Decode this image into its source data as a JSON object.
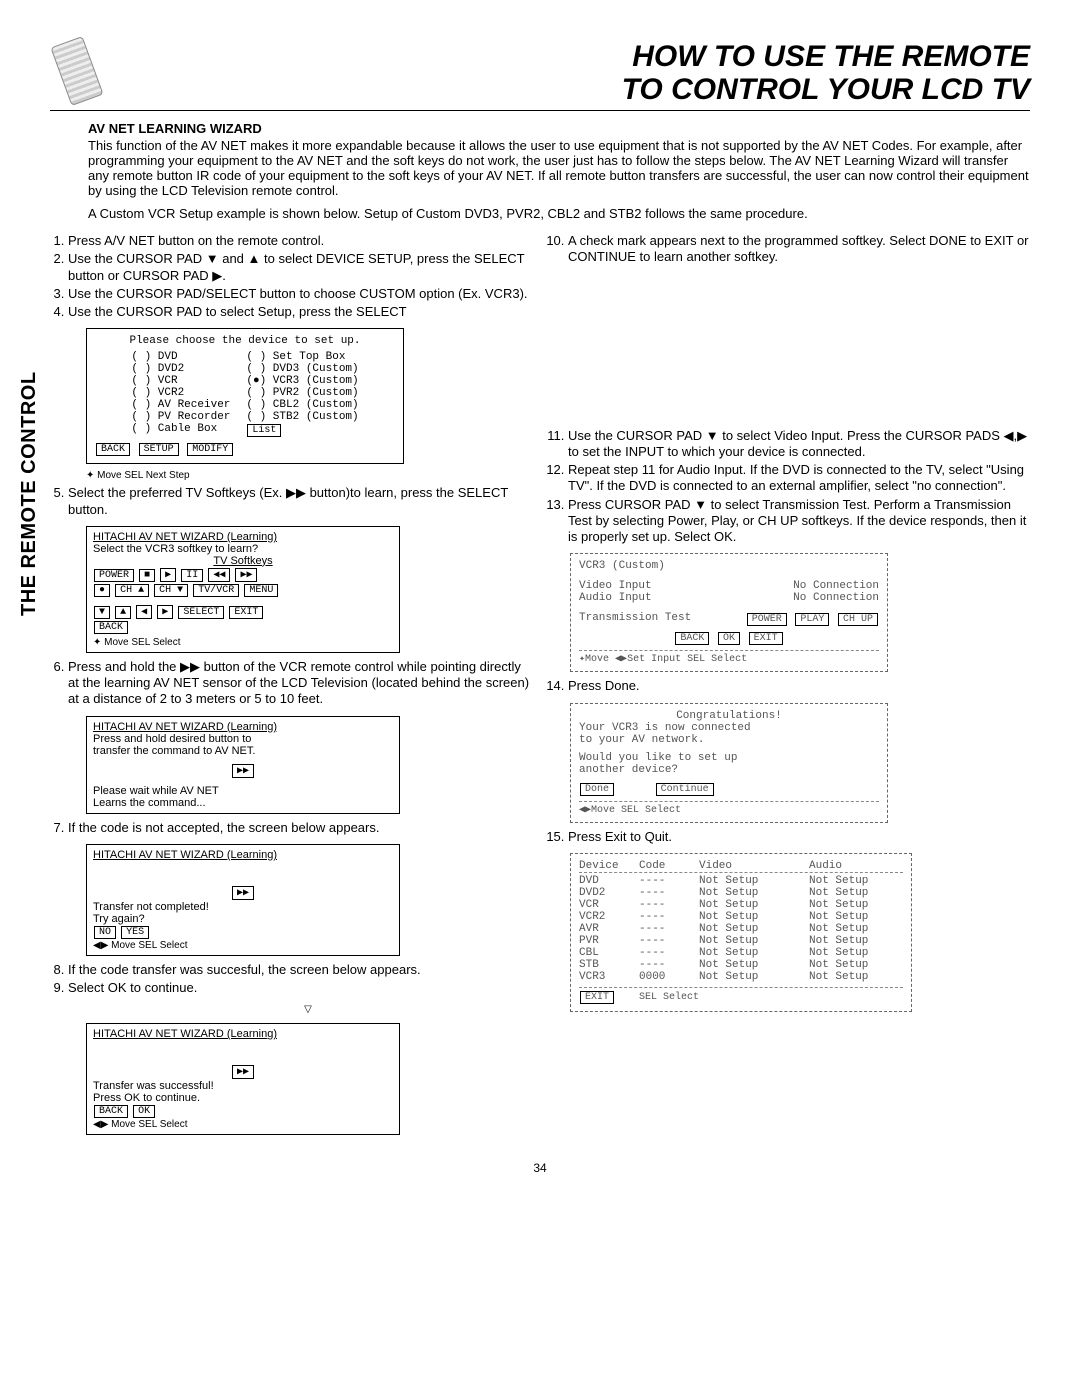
{
  "header": {
    "title_line1": "HOW TO USE THE REMOTE",
    "title_line2": "TO CONTROL YOUR LCD TV"
  },
  "side_tab": "THE REMOTE CONTROL",
  "section_title": "AV NET LEARNING WIZARD",
  "intro_p1": "This function of the AV NET makes it more expandable because it allows the user to use equipment that is not supported by the AV NET Codes.  For example, after programming your equipment to the AV NET and the soft keys do not work, the user just has to follow the steps below.  The AV NET Learning Wizard will transfer any remote button IR code of your equipment to the soft keys of your AV NET.  If all remote button transfers are successful, the user can now control their equipment by using the LCD Television remote control.",
  "intro_p2": "A Custom VCR Setup example is shown below. Setup of Custom DVD3, PVR2, CBL2 and STB2 follows the same procedure.",
  "left_steps_a": [
    "Press A/V NET button on the remote control.",
    "Use the CURSOR PAD ▼ and ▲ to select DEVICE SETUP, press the SELECT button or CURSOR PAD ▶.",
    "Use the CURSOR PAD/SELECT button to choose CUSTOM option (Ex. VCR3).",
    "Use the CURSOR PAD to select Setup, press the SELECT"
  ],
  "panel1": {
    "title": "Please choose the device to set up.",
    "left_col": [
      "( ) DVD",
      "( ) DVD2",
      "( ) VCR",
      "( ) VCR2",
      "( ) AV Receiver",
      "( ) PV Recorder",
      "( ) Cable Box"
    ],
    "right_col": [
      "( ) Set Top Box",
      "( ) DVD3 (Custom)",
      "(●) VCR3 (Custom)",
      "( ) PVR2 (Custom)",
      "( ) CBL2 (Custom)",
      "( ) STB2 (Custom)",
      "List"
    ],
    "buttons": [
      "BACK",
      "SETUP",
      "MODIFY"
    ],
    "hint": "✦ Move    SEL Next Step"
  },
  "step5": "Select the preferred TV Softkeys (Ex. ▶▶ button)to learn, press the SELECT button.",
  "panel2": {
    "title": "HITACHI AV NET WIZARD (Learning)",
    "sub": "Select the VCR3 softkey to learn?",
    "row_label": "TV Softkeys",
    "row1": [
      "POWER",
      "■",
      "▶",
      "II",
      "◀◀",
      "▶▶"
    ],
    "row2": [
      "●",
      "CH ▲",
      "CH ▼",
      "TV/VCR",
      "MENU"
    ],
    "row3": [
      "▼",
      "▲",
      "◀",
      "▶",
      "SELECT",
      "EXIT"
    ],
    "back": "BACK",
    "hint": "✦ Move      SEL Select"
  },
  "step6": "Press and hold the ▶▶ button of the VCR remote control while pointing directly at the learning AV NET sensor of the LCD Television (located behind the screen) at a distance of 2 to 3 meters or 5 to 10 feet.",
  "panel3": {
    "title": "HITACHI AV NET WIZARD (Learning)",
    "line1": "Press and hold desired button to",
    "line2": "transfer the command to AV NET.",
    "sym": "▶▶",
    "wait1": "Please wait while AV NET",
    "wait2": "Learns the command..."
  },
  "step7": "If the code is not accepted, the screen below appears.",
  "panel4": {
    "title": "HITACHI AV NET WIZARD (Learning)",
    "sym": "▶▶",
    "msg1": "Transfer not completed!",
    "msg2": "Try again?",
    "no": "NO",
    "yes": "YES",
    "hint": "◀▶ Move     SEL Select"
  },
  "step8": "If the code transfer was succesful, the screen below appears.",
  "step9": "Select OK to continue.",
  "panel5": {
    "title": "HITACHI AV NET WIZARD (Learning)",
    "sym": "▶▶",
    "msg1": "Transfer was successful!",
    "msg2": "Press OK to continue.",
    "back": "BACK",
    "ok": "OK",
    "hint": "◀▶ Move     SEL Select"
  },
  "right_steps_a": [
    "A check mark appears next to the programmed softkey. Select DONE to EXIT or CONTINUE to learn another softkey."
  ],
  "right_steps_b": [
    "Use the CURSOR PAD ▼ to select Video Input. Press the CURSOR PADS ◀,▶ to set the INPUT to which your device                 is connected.",
    "Repeat step 11 for Audio Input. If the DVD is connected to the TV, select \"Using TV\". If the DVD is connected to an external amplifier, select \"no connection\".",
    "Press CURSOR PAD ▼ to select Transmission Test. Perform a Transmission Test by selecting Power, Play, or CH UP softkeys.  If the device responds, then it is properly set up. Select OK."
  ],
  "screenA": {
    "top": "VCR3 (Custom)",
    "r1a": "Video Input",
    "r1b": "No Connection",
    "r2a": "Audio Input",
    "r2b": "No Connection",
    "r3a": "Transmission Test",
    "b1": "POWER",
    "b2": "PLAY",
    "b3": "CH UP",
    "back": "BACK",
    "ok": "OK",
    "exit": "EXIT",
    "hint": "✦Move  ◀▶Set Input   SEL Select"
  },
  "step14": "Press Done.",
  "screenB": {
    "l1": "Congratulations!",
    "l2": "Your VCR3 is now connected",
    "l3": "to your AV network.",
    "l4": "Would you like to set up",
    "l5": "another device?",
    "done": "Done",
    "cont": "Continue",
    "hint": "◀▶Move   SEL Select"
  },
  "step15": "Press Exit to Quit.",
  "dev_table": {
    "headers": [
      "Device",
      "Code",
      "Video",
      "Audio"
    ],
    "rows": [
      [
        "DVD",
        "----",
        "Not Setup",
        "Not Setup"
      ],
      [
        "DVD2",
        "----",
        "Not Setup",
        "Not Setup"
      ],
      [
        "VCR",
        "----",
        "Not Setup",
        "Not Setup"
      ],
      [
        "VCR2",
        "----",
        "Not Setup",
        "Not Setup"
      ],
      [
        "AVR",
        "----",
        "Not Setup",
        "Not Setup"
      ],
      [
        "PVR",
        "----",
        "Not Setup",
        "Not Setup"
      ],
      [
        "CBL",
        "----",
        "Not Setup",
        "Not Setup"
      ],
      [
        "STB",
        "----",
        "Not Setup",
        "Not Setup"
      ],
      [
        "VCR3",
        "0000",
        "Not Setup",
        "Not Setup"
      ]
    ],
    "exit": "EXIT",
    "hint": "SEL Select"
  },
  "page_number": "34"
}
